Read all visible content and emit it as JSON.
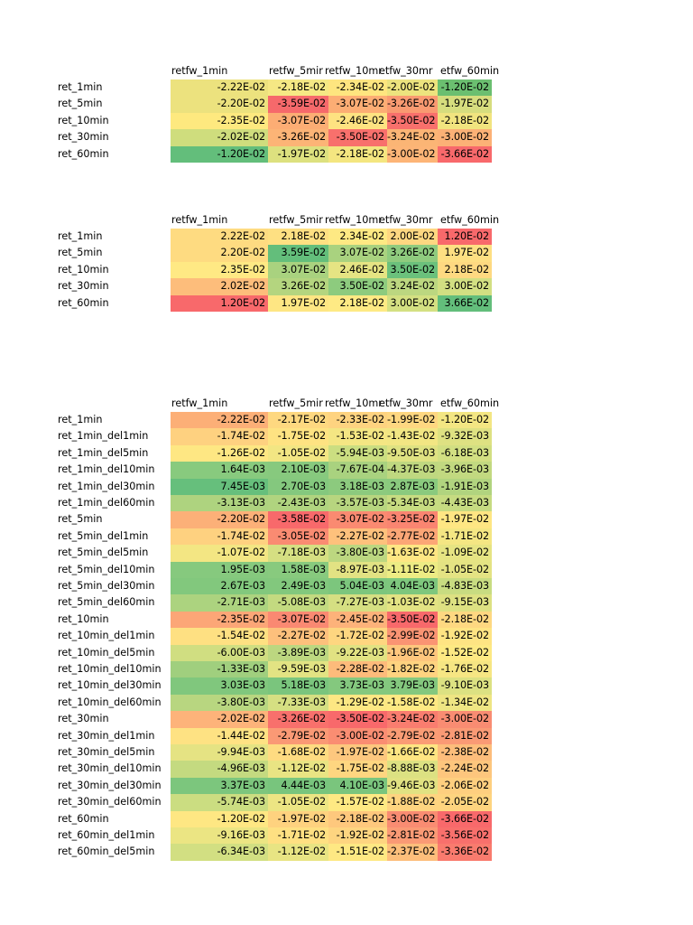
{
  "tables": [
    {
      "headers": [
        "retfw_1min",
        "retfw_5mir",
        "retfw_10mr",
        "etfw_30mr",
        "etfw_60min"
      ],
      "rows": [
        {
          "label": "ret_1min",
          "values": [
            "-2.22E-02",
            "-2.18E-02",
            "-2.34E-02",
            "-2.00E-02",
            "-1.20E-02"
          ],
          "colors": [
            "#ece27e",
            "#f5e884",
            "#fee57f",
            "#ece37e",
            "#6bbf70"
          ]
        },
        {
          "label": "ret_5min",
          "values": [
            "-2.20E-02",
            "-3.59E-02",
            "-3.07E-02",
            "-3.26E-02",
            "-1.97E-02"
          ],
          "colors": [
            "#ece27e",
            "#f6696b",
            "#fcad74",
            "#f99a71",
            "#d6dd7e"
          ]
        },
        {
          "label": "ret_10min",
          "values": [
            "-2.35E-02",
            "-3.07E-02",
            "-2.46E-02",
            "-3.50E-02",
            "-2.18E-02"
          ],
          "colors": [
            "#fee97f",
            "#fcad74",
            "#fee281",
            "#f8706c",
            "#f1e47f"
          ]
        },
        {
          "label": "ret_30min",
          "values": [
            "-2.02E-02",
            "-3.26E-02",
            "-3.50E-02",
            "-3.24E-02",
            "-3.00E-02"
          ],
          "colors": [
            "#cfdd7d",
            "#fcb476",
            "#f8706c",
            "#fbb575",
            "#fcb176"
          ]
        },
        {
          "label": "ret_60min",
          "values": [
            "-1.20E-02",
            "-1.97E-02",
            "-2.18E-02",
            "-3.00E-02",
            "-3.66E-02"
          ],
          "colors": [
            "#63be7b",
            "#dde17f",
            "#f4e680",
            "#fdb577",
            "#f8696b"
          ]
        }
      ]
    },
    {
      "headers": [
        "retfw_1min",
        "retfw_5mir",
        "retfw_10mr",
        "etfw_30mr",
        "etfw_60min"
      ],
      "rows": [
        {
          "label": "ret_1min",
          "values": [
            "2.22E-02",
            "2.18E-02",
            "2.34E-02",
            "2.00E-02",
            "1.20E-02"
          ],
          "colors": [
            "#fedb81",
            "#fee082",
            "#fee983",
            "#fed781",
            "#f8696b"
          ]
        },
        {
          "label": "ret_5min",
          "values": [
            "2.20E-02",
            "3.59E-02",
            "3.07E-02",
            "3.26E-02",
            "1.97E-02"
          ],
          "colors": [
            "#fedb81",
            "#63be7b",
            "#a9d27f",
            "#8fcb7e",
            "#fedf82"
          ]
        },
        {
          "label": "ret_10min",
          "values": [
            "2.35E-02",
            "3.07E-02",
            "2.46E-02",
            "3.50E-02",
            "2.18E-02"
          ],
          "colors": [
            "#ffe984",
            "#a9d27f",
            "#e5e483",
            "#6bc17c",
            "#fed981"
          ]
        },
        {
          "label": "ret_30min",
          "values": [
            "2.02E-02",
            "3.26E-02",
            "3.50E-02",
            "3.24E-02",
            "3.00E-02"
          ],
          "colors": [
            "#fdbd7b",
            "#b4d57f",
            "#8dcb7e",
            "#bcd780",
            "#d2df82"
          ]
        },
        {
          "label": "ret_60min",
          "values": [
            "1.20E-02",
            "1.97E-02",
            "2.18E-02",
            "3.00E-02",
            "3.66E-02"
          ],
          "colors": [
            "#f8696b",
            "#fee683",
            "#feea84",
            "#d4e082",
            "#63be7b"
          ]
        }
      ]
    },
    {
      "headers": [
        "retfw_1min",
        "retfw_5mir",
        "retfw_10mr",
        "etfw_30mr",
        "etfw_60min"
      ],
      "rows": [
        {
          "label": "ret_1min",
          "values": [
            "-2.22E-02",
            "-2.17E-02",
            "-2.33E-02",
            "-1.99E-02",
            "-1.20E-02"
          ],
          "colors": [
            "#fcaf77",
            "#fed880",
            "#fed380",
            "#fed781",
            "#f3e683"
          ]
        },
        {
          "label": "ret_1min_del1min",
          "values": [
            "-1.74E-02",
            "-1.75E-02",
            "-1.53E-02",
            "-1.43E-02",
            "-9.32E-03"
          ],
          "colors": [
            "#fed180",
            "#fee382",
            "#f4e683",
            "#f2e683",
            "#dee182"
          ]
        },
        {
          "label": "ret_1min_del5min",
          "values": [
            "-1.26E-02",
            "-1.05E-02",
            "-5.94E-03",
            "-9.50E-03",
            "-6.18E-03"
          ],
          "colors": [
            "#fee783",
            "#f2e683",
            "#cbde81",
            "#dfe282",
            "#d2df82"
          ]
        },
        {
          "label": "ret_1min_del10min",
          "values": [
            "1.64E-03",
            "2.10E-03",
            "-7.67E-04",
            "-4.37E-03",
            "-3.96E-03"
          ],
          "colors": [
            "#88ca7e",
            "#87c97e",
            "#a9d27f",
            "#bfd880",
            "#c2d980"
          ]
        },
        {
          "label": "ret_1min_del30min",
          "values": [
            "7.45E-03",
            "2.70E-03",
            "3.18E-03",
            "2.87E-03",
            "-1.91E-03"
          ],
          "colors": [
            "#66bf7c",
            "#84c87e",
            "#8cca7e",
            "#8aca7e",
            "#b1d47f"
          ]
        },
        {
          "label": "ret_1min_del60min",
          "values": [
            "-3.13E-03",
            "-2.43E-03",
            "-3.57E-03",
            "-5.34E-03",
            "-4.43E-03"
          ],
          "colors": [
            "#aed37f",
            "#b0d47f",
            "#b7d57f",
            "#c7dc81",
            "#c6db81"
          ]
        },
        {
          "label": "ret_5min",
          "values": [
            "-2.20E-02",
            "-3.58E-02",
            "-3.07E-02",
            "-3.25E-02",
            "-1.97E-02"
          ],
          "colors": [
            "#fcb078",
            "#f8696b",
            "#fa8a71",
            "#fa8571",
            "#fee683"
          ]
        },
        {
          "label": "ret_5min_del1min",
          "values": [
            "-1.74E-02",
            "-3.05E-02",
            "-2.27E-02",
            "-2.77E-02",
            "-1.71E-02"
          ],
          "colors": [
            "#fed180",
            "#fa8b72",
            "#fec17c",
            "#fca676",
            "#f4e683"
          ]
        },
        {
          "label": "ret_5min_del5min",
          "values": [
            "-1.07E-02",
            "-7.18E-03",
            "-3.80E-03",
            "-1.63E-02",
            "-1.09E-02"
          ],
          "colors": [
            "#f3e683",
            "#d5df82",
            "#bcd780",
            "#fee683",
            "#e6e483"
          ]
        },
        {
          "label": "ret_5min_del10min",
          "values": [
            "1.95E-03",
            "1.58E-03",
            "-8.97E-03",
            "-1.11E-02",
            "-1.05E-02"
          ],
          "colors": [
            "#86c97e",
            "#88ca7e",
            "#e2e283",
            "#edec84",
            "#e4e383"
          ]
        },
        {
          "label": "ret_5min_del30min",
          "values": [
            "2.67E-03",
            "2.49E-03",
            "5.04E-03",
            "4.04E-03",
            "-4.83E-03"
          ],
          "colors": [
            "#82c87d",
            "#82c87d",
            "#7cc67d",
            "#7ec77d",
            "#c8dc81"
          ]
        },
        {
          "label": "ret_5min_del60min",
          "values": [
            "-2.71E-03",
            "-5.08E-03",
            "-7.27E-03",
            "-1.03E-02",
            "-9.15E-03"
          ],
          "colors": [
            "#acd37f",
            "#c3da80",
            "#d5df82",
            "#e3e383",
            "#dde182"
          ]
        },
        {
          "label": "ret_10min",
          "values": [
            "-2.35E-02",
            "-3.07E-02",
            "-2.45E-02",
            "-3.50E-02",
            "-2.18E-02"
          ],
          "colors": [
            "#fca677",
            "#fa8972",
            "#fdb27a",
            "#f8696b",
            "#fed881"
          ]
        },
        {
          "label": "ret_10min_del1min",
          "values": [
            "-1.54E-02",
            "-2.27E-02",
            "-1.72E-02",
            "-2.99E-02",
            "-1.92E-02"
          ],
          "colors": [
            "#fee082",
            "#fdc07c",
            "#fed680",
            "#fa9473",
            "#fee483"
          ]
        },
        {
          "label": "ret_10min_del5min",
          "values": [
            "-6.00E-03",
            "-3.89E-03",
            "-9.22E-03",
            "-1.96E-02",
            "-1.52E-02"
          ],
          "colors": [
            "#d0de81",
            "#bcd780",
            "#e1e282",
            "#fec67d",
            "#fde983"
          ]
        },
        {
          "label": "ret_10min_del10min",
          "values": [
            "-1.33E-03",
            "-9.59E-03",
            "-2.28E-02",
            "-1.82E-02",
            "-1.76E-02"
          ],
          "colors": [
            "#a0cf7e",
            "#e2e383",
            "#fdbb7b",
            "#fed380",
            "#f6e683"
          ]
        },
        {
          "label": "ret_10min_del30min",
          "values": [
            "3.03E-03",
            "5.18E-03",
            "3.73E-03",
            "3.79E-03",
            "-9.10E-03"
          ],
          "colors": [
            "#80c77d",
            "#7ac57d",
            "#84c87e",
            "#84c87e",
            "#dce182"
          ]
        },
        {
          "label": "ret_10min_del60min",
          "values": [
            "-3.80E-03",
            "-7.33E-03",
            "-1.29E-02",
            "-1.58E-02",
            "-1.34E-02"
          ],
          "colors": [
            "#b8d680",
            "#d5df82",
            "#fde783",
            "#fee983",
            "#eee583"
          ]
        },
        {
          "label": "ret_30min",
          "values": [
            "-2.02E-02",
            "-3.26E-02",
            "-3.50E-02",
            "-3.24E-02",
            "-3.00E-02"
          ],
          "colors": [
            "#fdb37a",
            "#f8706c",
            "#f8696b",
            "#f97d6f",
            "#f98c72"
          ]
        },
        {
          "label": "ret_30min_del1min",
          "values": [
            "-1.44E-02",
            "-2.79E-02",
            "-3.00E-02",
            "-2.79E-02",
            "-2.81E-02"
          ],
          "colors": [
            "#fee283",
            "#fa9975",
            "#fa8d72",
            "#fa9c75",
            "#fa9a75"
          ]
        },
        {
          "label": "ret_30min_del5min",
          "values": [
            "-9.94E-03",
            "-1.68E-02",
            "-1.97E-02",
            "-1.66E-02",
            "-2.38E-02"
          ],
          "colors": [
            "#e5e383",
            "#fedb81",
            "#fdc77e",
            "#fee582",
            "#fdbd7b"
          ]
        },
        {
          "label": "ret_30min_del10min",
          "values": [
            "-4.96E-03",
            "-1.12E-02",
            "-1.75E-02",
            "-8.88E-03",
            "-2.24E-02"
          ],
          "colors": [
            "#c4da80",
            "#e9e483",
            "#fed680",
            "#dce182",
            "#fdc67d"
          ]
        },
        {
          "label": "ret_30min_del30min",
          "values": [
            "3.37E-03",
            "4.44E-03",
            "4.10E-03",
            "-9.46E-03",
            "-2.06E-02"
          ],
          "colors": [
            "#7cc67d",
            "#78c57d",
            "#7ac57d",
            "#e1e282",
            "#fecf7f"
          ]
        },
        {
          "label": "ret_30min_del60min",
          "values": [
            "-5.74E-03",
            "-1.05E-02",
            "-1.57E-02",
            "-1.88E-02",
            "-2.05E-02"
          ],
          "colors": [
            "#cbdd81",
            "#ece583",
            "#fee983",
            "#fed480",
            "#fed47f"
          ]
        },
        {
          "label": "ret_60min",
          "values": [
            "-1.20E-02",
            "-1.97E-02",
            "-2.18E-02",
            "-3.00E-02",
            "-3.66E-02"
          ],
          "colors": [
            "#fee783",
            "#fed27f",
            "#fec87d",
            "#f98c72",
            "#f8696b"
          ]
        },
        {
          "label": "ret_60min_del1min",
          "values": [
            "-9.16E-03",
            "-1.71E-02",
            "-1.92E-02",
            "-2.81E-02",
            "-3.56E-02"
          ],
          "colors": [
            "#ebe583",
            "#fee082",
            "#fed580",
            "#fa9a75",
            "#f8706c"
          ]
        },
        {
          "label": "ret_60min_del5min",
          "values": [
            "-6.34E-03",
            "-1.12E-02",
            "-1.51E-02",
            "-2.37E-02",
            "-3.36E-02"
          ],
          "colors": [
            "#d2df82",
            "#e8e483",
            "#fee883",
            "#fdbe7b",
            "#f97b6e"
          ]
        }
      ]
    }
  ]
}
